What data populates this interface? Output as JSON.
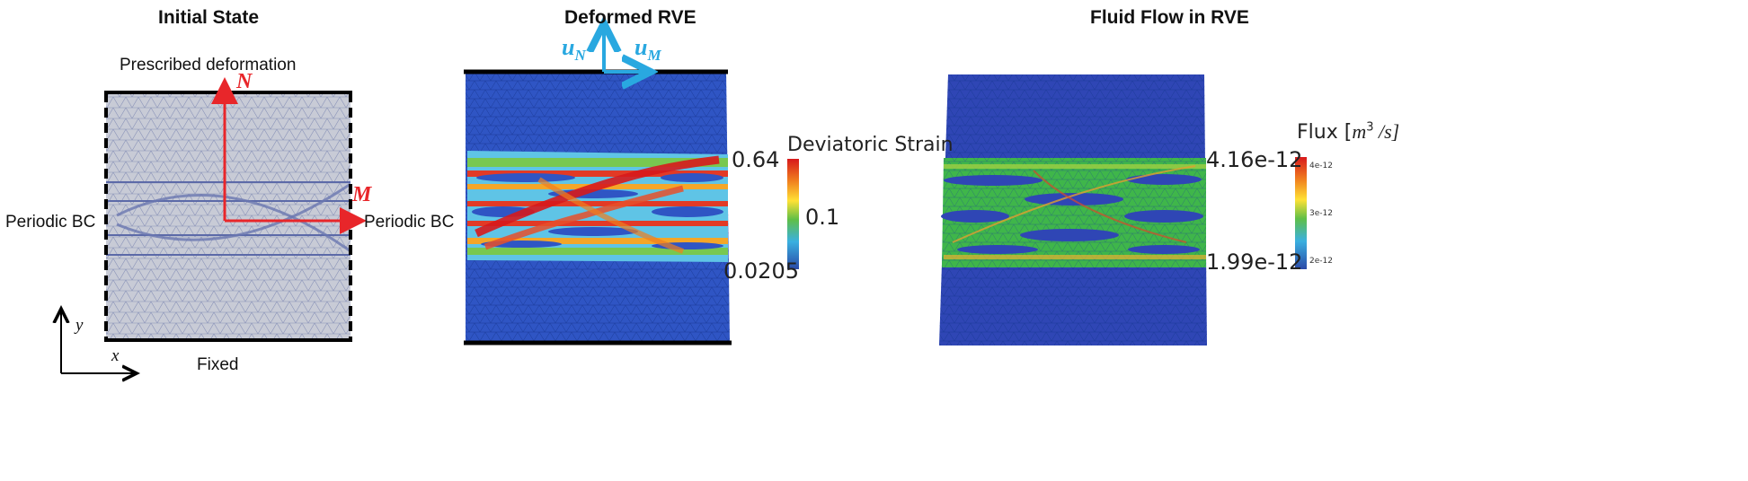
{
  "panel1": {
    "title": "Initial State",
    "top_label": "Prescribed deformation",
    "bottom_label": "Fixed",
    "left_label": "Periodic BC",
    "right_label": "Periodic BC",
    "axis_n": "N",
    "axis_m": "M",
    "coord_y": "y",
    "coord_x": "x"
  },
  "panel2": {
    "title": "Deformed RVE",
    "disp_n": "u",
    "disp_n_sub": "N",
    "disp_m": "u",
    "disp_m_sub": "M",
    "colorbar": {
      "label": "Deviatoric Strain",
      "max": "0.64",
      "mid": "0.1",
      "min": "0.0205"
    }
  },
  "panel3": {
    "title": "Fluid Flow in RVE",
    "colorbar": {
      "label_prefix": "Flux [",
      "label_unit": "m",
      "label_exp": "3",
      "label_suffix": " /s]",
      "max": "4.16e-12",
      "min": "1.99e-12",
      "tick_top": "4e-12",
      "tick_mid": "3e-12",
      "tick_bot": "2e-12"
    }
  },
  "colors": {
    "arrow_red": "#e8262a",
    "arrow_blue": "#29a8e0",
    "mesh_blue": "#2a4fb7",
    "mesh_grey": "#c8cbd6"
  }
}
